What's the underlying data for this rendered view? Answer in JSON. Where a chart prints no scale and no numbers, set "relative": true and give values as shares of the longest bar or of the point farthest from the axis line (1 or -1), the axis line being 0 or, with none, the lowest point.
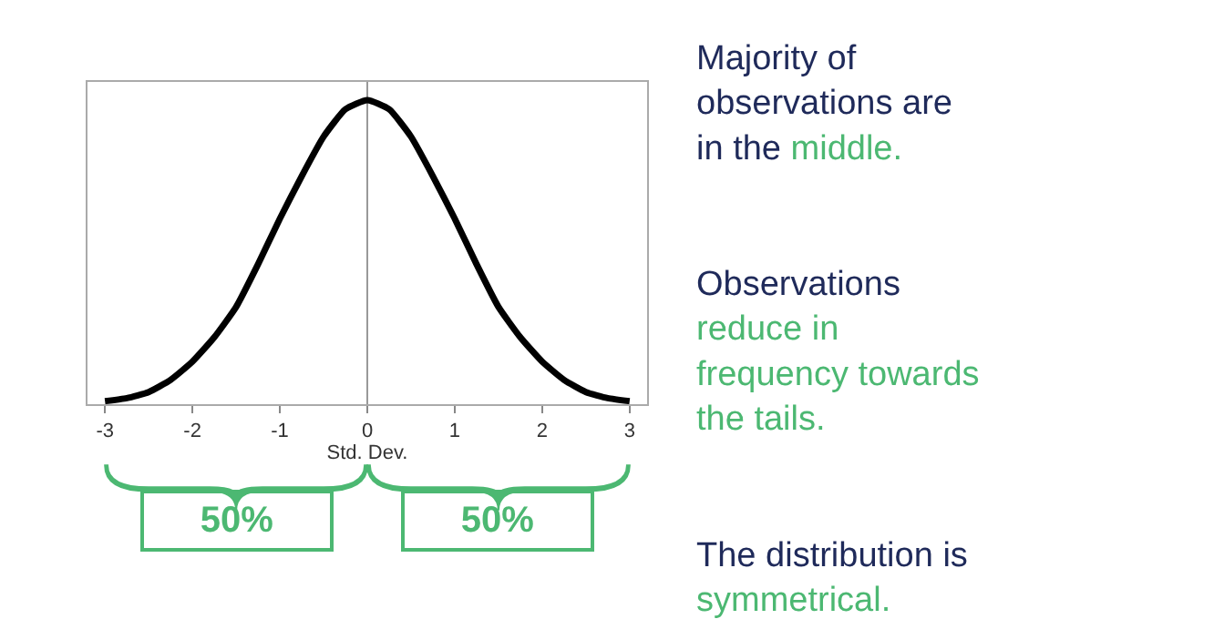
{
  "chart_data": {
    "type": "line",
    "relative": true,
    "xlabel": "Std. Dev.",
    "x": [
      -3,
      -2.75,
      -2.5,
      -2.25,
      -2,
      -1.75,
      -1.5,
      -1.25,
      -1,
      -0.75,
      -0.5,
      -0.25,
      0,
      0.25,
      0.5,
      0.75,
      1,
      1.25,
      1.5,
      1.75,
      2,
      2.25,
      2.5,
      2.75,
      3
    ],
    "series": [
      {
        "color": "#000000",
        "values": [
          0.01,
          0.02,
          0.04,
          0.08,
          0.14,
          0.22,
          0.32,
          0.46,
          0.61,
          0.75,
          0.88,
          0.97,
          1,
          0.97,
          0.88,
          0.75,
          0.61,
          0.46,
          0.32,
          0.22,
          0.14,
          0.08,
          0.04,
          0.02,
          0.01
        ]
      }
    ],
    "xlim": [
      -3.2,
      3.2
    ],
    "xticks": [
      -3,
      -2,
      -1,
      0,
      1,
      2,
      3
    ],
    "ref_lines": [
      {
        "axis": "x",
        "value": 0,
        "color": "#999999"
      }
    ],
    "marker": "none",
    "line_style": "solid",
    "annotations": [
      "Majority of observations are in the",
      "middle.",
      "Observations",
      "reduce in frequency towards the tails.",
      "The distribution is",
      "symmetrical.",
      "50%",
      "50%"
    ]
  }
}
